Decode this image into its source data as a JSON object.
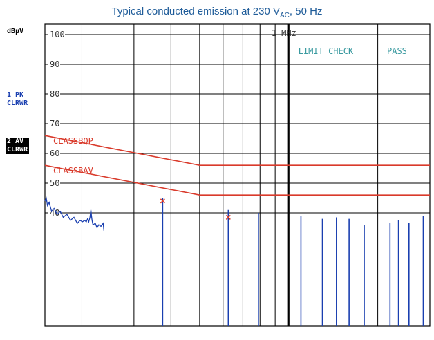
{
  "caption": {
    "text": "Typical conducted emission at 230 V",
    "sub": "AC",
    "tail": ", 50 Hz"
  },
  "unit_label": "dBµV",
  "trace1": {
    "line1": "1 PK",
    "line2": "CLRWR"
  },
  "trace2": {
    "line1": "2 AV",
    "line2": "CLRWR"
  },
  "freq_marker": "1 MHz",
  "limit_check": {
    "label": "LIMIT CHECK",
    "result": "PASS"
  },
  "colors": {
    "limit": "#d93a2b",
    "trace": "#1a3fb0",
    "marker": "#d93a2b",
    "annot": "#3a9aa0",
    "caption": "#1f5c99"
  },
  "chart_data": {
    "type": "line",
    "title": "Typical conducted emission at 230 VAC, 50 Hz",
    "ylabel": "dBµV",
    "ylim": [
      34,
      104
    ],
    "y_ticks": [
      100,
      90,
      80,
      70,
      60,
      50,
      40
    ],
    "x_scale": "log",
    "xlim_hz": [
      150000,
      3000000
    ],
    "grid": true,
    "limits": [
      {
        "name": "CLASSBQP",
        "points": [
          [
            150000,
            66
          ],
          [
            500000,
            56
          ],
          [
            3000000,
            56
          ]
        ]
      },
      {
        "name": "CLASSBAV",
        "points": [
          [
            150000,
            56
          ],
          [
            500000,
            46
          ],
          [
            3000000,
            46
          ]
        ]
      }
    ],
    "trace": {
      "name": "1 PK",
      "points": [
        [
          150000,
          44
        ],
        [
          151500,
          45
        ],
        [
          153000,
          42.5
        ],
        [
          155000,
          43.5
        ],
        [
          158000,
          40.5
        ],
        [
          161000,
          41.5
        ],
        [
          165000,
          39.5
        ],
        [
          169000,
          40.5
        ],
        [
          173000,
          38.5
        ],
        [
          178000,
          39.5
        ],
        [
          183000,
          37.5
        ],
        [
          188000,
          38.5
        ],
        [
          193000,
          36.5
        ],
        [
          197000,
          37.5
        ],
        [
          201000,
          37
        ],
        [
          204000,
          37.5
        ],
        [
          207000,
          37
        ],
        [
          209000,
          38
        ],
        [
          211000,
          37
        ],
        [
          213000,
          38.5
        ],
        [
          214500,
          41
        ],
        [
          215500,
          39
        ],
        [
          216500,
          37.5
        ],
        [
          218000,
          36
        ],
        [
          222000,
          36.5
        ],
        [
          225000,
          35
        ],
        [
          228000,
          36
        ],
        [
          232000,
          35.5
        ],
        [
          236000,
          36.5
        ],
        [
          237500,
          34
        ]
      ],
      "spikes": [
        {
          "f": 375000,
          "level": 45,
          "mark": 44
        },
        {
          "f": 625000,
          "level": 41,
          "mark": 38.5
        },
        {
          "f": 790000,
          "level": 40
        },
        {
          "f": 1100000,
          "level": 39
        },
        {
          "f": 1300000,
          "level": 38
        },
        {
          "f": 1450000,
          "level": 38.5
        },
        {
          "f": 1600000,
          "level": 38
        },
        {
          "f": 1800000,
          "level": 36
        },
        {
          "f": 2200000,
          "level": 36.5
        },
        {
          "f": 2350000,
          "level": 37.5
        },
        {
          "f": 2550000,
          "level": 36.5
        },
        {
          "f": 2850000,
          "level": 39
        }
      ]
    }
  }
}
